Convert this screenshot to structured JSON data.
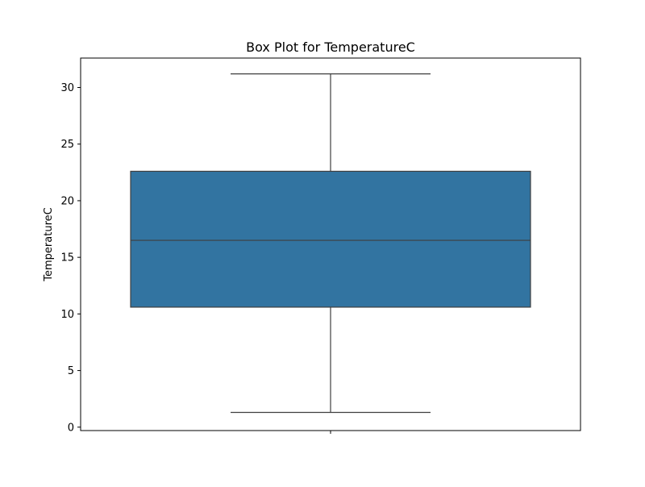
{
  "chart_data": {
    "type": "box",
    "title": "Box Plot for TemperatureC",
    "xlabel": "",
    "ylabel": "TemperatureC",
    "ylim": [
      -0.3,
      32.6
    ],
    "yticks": [
      0,
      5,
      10,
      15,
      20,
      25,
      30
    ],
    "grid": false,
    "box": {
      "min": 1.3,
      "q1": 10.6,
      "median": 16.5,
      "q3": 22.6,
      "max": 31.2,
      "fill_color": "#3274a1",
      "line_color": "#3f3f3f"
    }
  }
}
